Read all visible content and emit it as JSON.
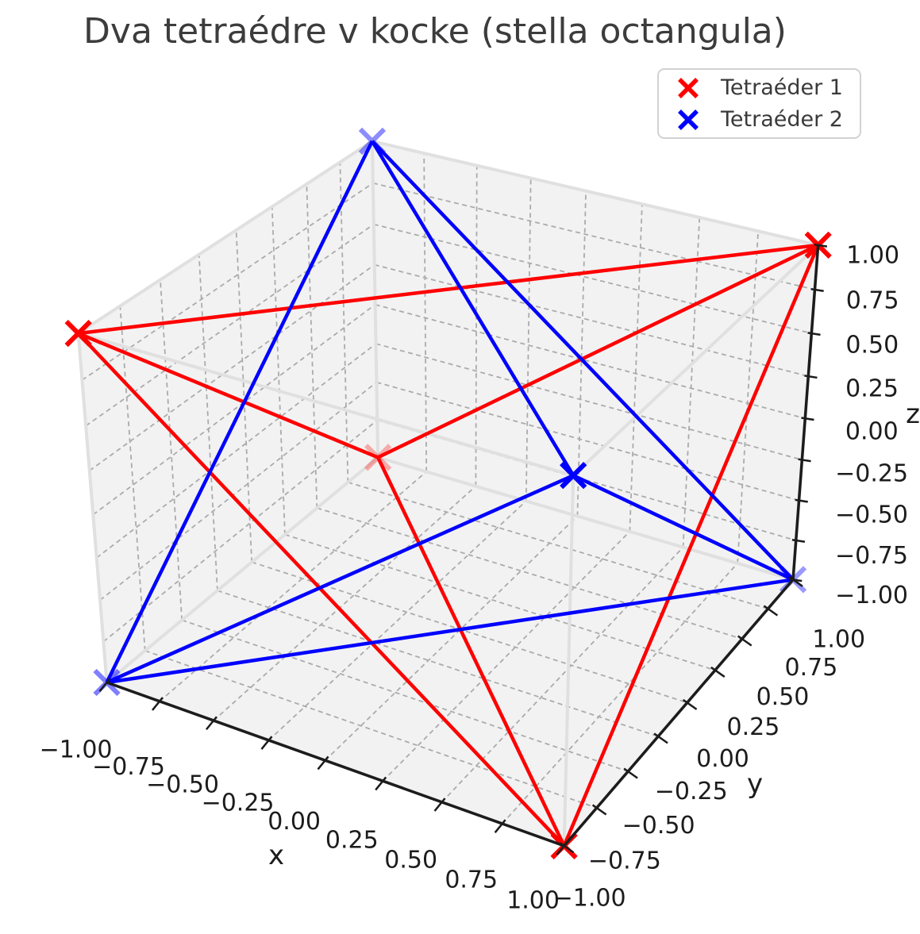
{
  "chart_data": {
    "type": "line",
    "subtype": "3d-wireframe",
    "title": "Dva tetraédre v kocke (stella octangula)",
    "view": {
      "azim": -60,
      "elev": 30,
      "projection": "perspective",
      "box_aspect": [
        4,
        4,
        3
      ]
    },
    "axes": {
      "xlabel": "x",
      "ylabel": "y",
      "zlabel": "z",
      "xlim": [
        -1,
        1
      ],
      "ylim": [
        -1,
        1
      ],
      "zlim": [
        -1,
        1
      ],
      "tick_step": 0.25,
      "tick_values": [
        -1,
        -0.75,
        -0.5,
        -0.25,
        0,
        0.25,
        0.5,
        0.75,
        1
      ],
      "tick_labels": [
        "−1.00",
        "−0.75",
        "−0.50",
        "−0.25",
        "0.00",
        "0.25",
        "0.50",
        "0.75",
        "1.00"
      ],
      "grid": true,
      "grid_color": "#ababab",
      "pane_color": "#f2f2f2",
      "pane_edge_color": "#e9e9e9",
      "spine_color": "#1c1c1c",
      "text_color": "#1c1c1c",
      "title_color": "#3c3c3c"
    },
    "cube": {
      "name": "kocka",
      "color": "#e0e0e0",
      "vertices": [
        [
          -1,
          -1,
          -1
        ],
        [
          1,
          -1,
          -1
        ],
        [
          1,
          1,
          -1
        ],
        [
          -1,
          1,
          -1
        ],
        [
          -1,
          -1,
          1
        ],
        [
          1,
          -1,
          1
        ],
        [
          1,
          1,
          1
        ],
        [
          -1,
          1,
          1
        ]
      ],
      "edges": [
        [
          0,
          1
        ],
        [
          1,
          2
        ],
        [
          2,
          3
        ],
        [
          3,
          0
        ],
        [
          4,
          5
        ],
        [
          5,
          6
        ],
        [
          6,
          7
        ],
        [
          7,
          4
        ],
        [
          0,
          4
        ],
        [
          1,
          5
        ],
        [
          2,
          6
        ],
        [
          3,
          7
        ]
      ]
    },
    "series": [
      {
        "name": "Tetraéder 1",
        "color": "#ff0000",
        "marker": "x",
        "vertices": [
          [
            1,
            1,
            1
          ],
          [
            -1,
            -1,
            1
          ],
          [
            -1,
            1,
            -1
          ],
          [
            1,
            -1,
            -1
          ]
        ],
        "marker_opacity": [
          1,
          1,
          0.3,
          1
        ],
        "edges": [
          [
            0,
            1
          ],
          [
            0,
            2
          ],
          [
            0,
            3
          ],
          [
            1,
            2
          ],
          [
            1,
            3
          ],
          [
            2,
            3
          ]
        ]
      },
      {
        "name": "Tetraéder 2",
        "color": "#0000ff",
        "marker": "x",
        "vertices": [
          [
            -1,
            1,
            1
          ],
          [
            1,
            -1,
            1
          ],
          [
            1,
            1,
            -1
          ],
          [
            -1,
            -1,
            -1
          ]
        ],
        "marker_opacity": [
          0.45,
          1,
          0.4,
          0.5
        ],
        "edges": [
          [
            0,
            1
          ],
          [
            0,
            2
          ],
          [
            0,
            3
          ],
          [
            1,
            2
          ],
          [
            1,
            3
          ],
          [
            2,
            3
          ]
        ]
      }
    ],
    "legend": {
      "position": "upper right",
      "items": [
        "Tetraéder 1",
        "Tetraéder 2"
      ]
    }
  }
}
